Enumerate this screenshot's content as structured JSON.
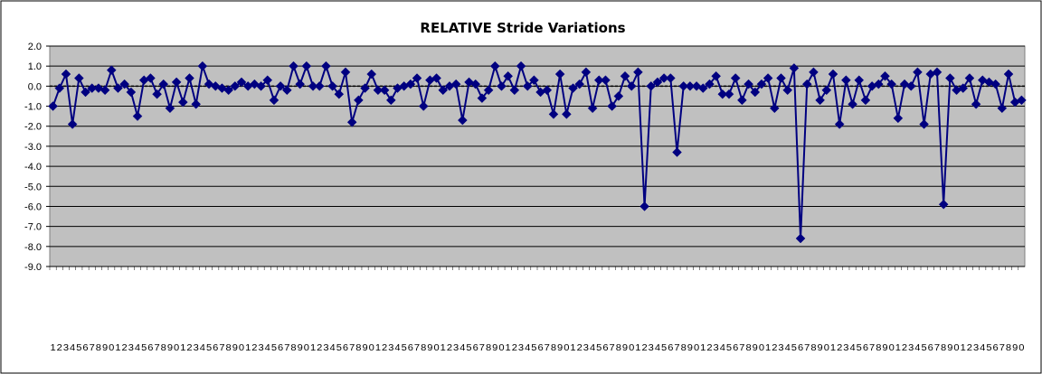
{
  "chart_data": {
    "type": "line",
    "title": "RELATIVE Stride Variations",
    "xlabel": "",
    "ylabel": "",
    "ylim": [
      -9,
      2
    ],
    "y_ticks": [
      "2.0",
      "1.0",
      "0.0",
      "-1.0",
      "-2.0",
      "-3.0",
      "-4.0",
      "-5.0",
      "-6.0",
      "-7.0",
      "-8.0",
      "-9.0"
    ],
    "grid": true,
    "legend": "none",
    "x_first": 1,
    "x_last": 150,
    "series": [
      {
        "color": "#000080",
        "marker": "diamond",
        "values": [
          -1.0,
          -0.1,
          0.6,
          -1.9,
          0.4,
          -0.3,
          -0.1,
          -0.1,
          -0.2,
          0.8,
          -0.1,
          0.1,
          -0.3,
          -1.5,
          0.3,
          0.4,
          -0.4,
          0.1,
          -1.1,
          0.2,
          -0.8,
          0.4,
          -0.9,
          1.0,
          0.1,
          0.0,
          -0.1,
          -0.2,
          0.0,
          0.2,
          0.0,
          0.1,
          0.0,
          0.3,
          -0.7,
          0.0,
          -0.2,
          1.0,
          0.1,
          1.0,
          0.0,
          0.0,
          1.0,
          0.0,
          -0.4,
          0.7,
          -1.8,
          -0.7,
          -0.1,
          0.6,
          -0.2,
          -0.2,
          -0.7,
          -0.1,
          0.0,
          0.1,
          0.4,
          -1.0,
          0.3,
          0.4,
          -0.2,
          0.0,
          0.1,
          -1.7,
          0.2,
          0.1,
          -0.6,
          -0.2,
          1.0,
          0.0,
          0.5,
          -0.2,
          1.0,
          0.0,
          0.3,
          -0.3,
          -0.2,
          -1.4,
          0.6,
          -1.4,
          -0.1,
          0.1,
          0.7,
          -1.1,
          0.3,
          0.3,
          -1.0,
          -0.5,
          0.5,
          0.0,
          0.7,
          -6.0,
          0.0,
          0.2,
          0.4,
          0.4,
          -3.3,
          0.0,
          0.0,
          0.0,
          -0.1,
          0.1,
          0.5,
          -0.4,
          -0.4,
          0.4,
          -0.7,
          0.1,
          -0.3,
          0.1,
          0.4,
          -1.1,
          0.4,
          -0.2,
          0.9,
          -7.6,
          0.1,
          0.7,
          -0.7,
          -0.2,
          0.6,
          -1.9,
          0.3,
          -0.9,
          0.3,
          -0.7,
          0.0,
          0.1,
          0.5,
          0.1,
          -1.6,
          0.1,
          0.0,
          0.7,
          -1.9,
          0.6,
          0.7,
          -5.9,
          0.4,
          -0.2,
          -0.1,
          0.4,
          -0.9,
          0.3,
          0.2,
          0.1,
          -1.1,
          0.6,
          -0.8,
          -0.7
        ]
      }
    ]
  },
  "colors": {
    "plot_background": "#c0c0c0",
    "series": "#000080",
    "gridline": "#000000"
  }
}
